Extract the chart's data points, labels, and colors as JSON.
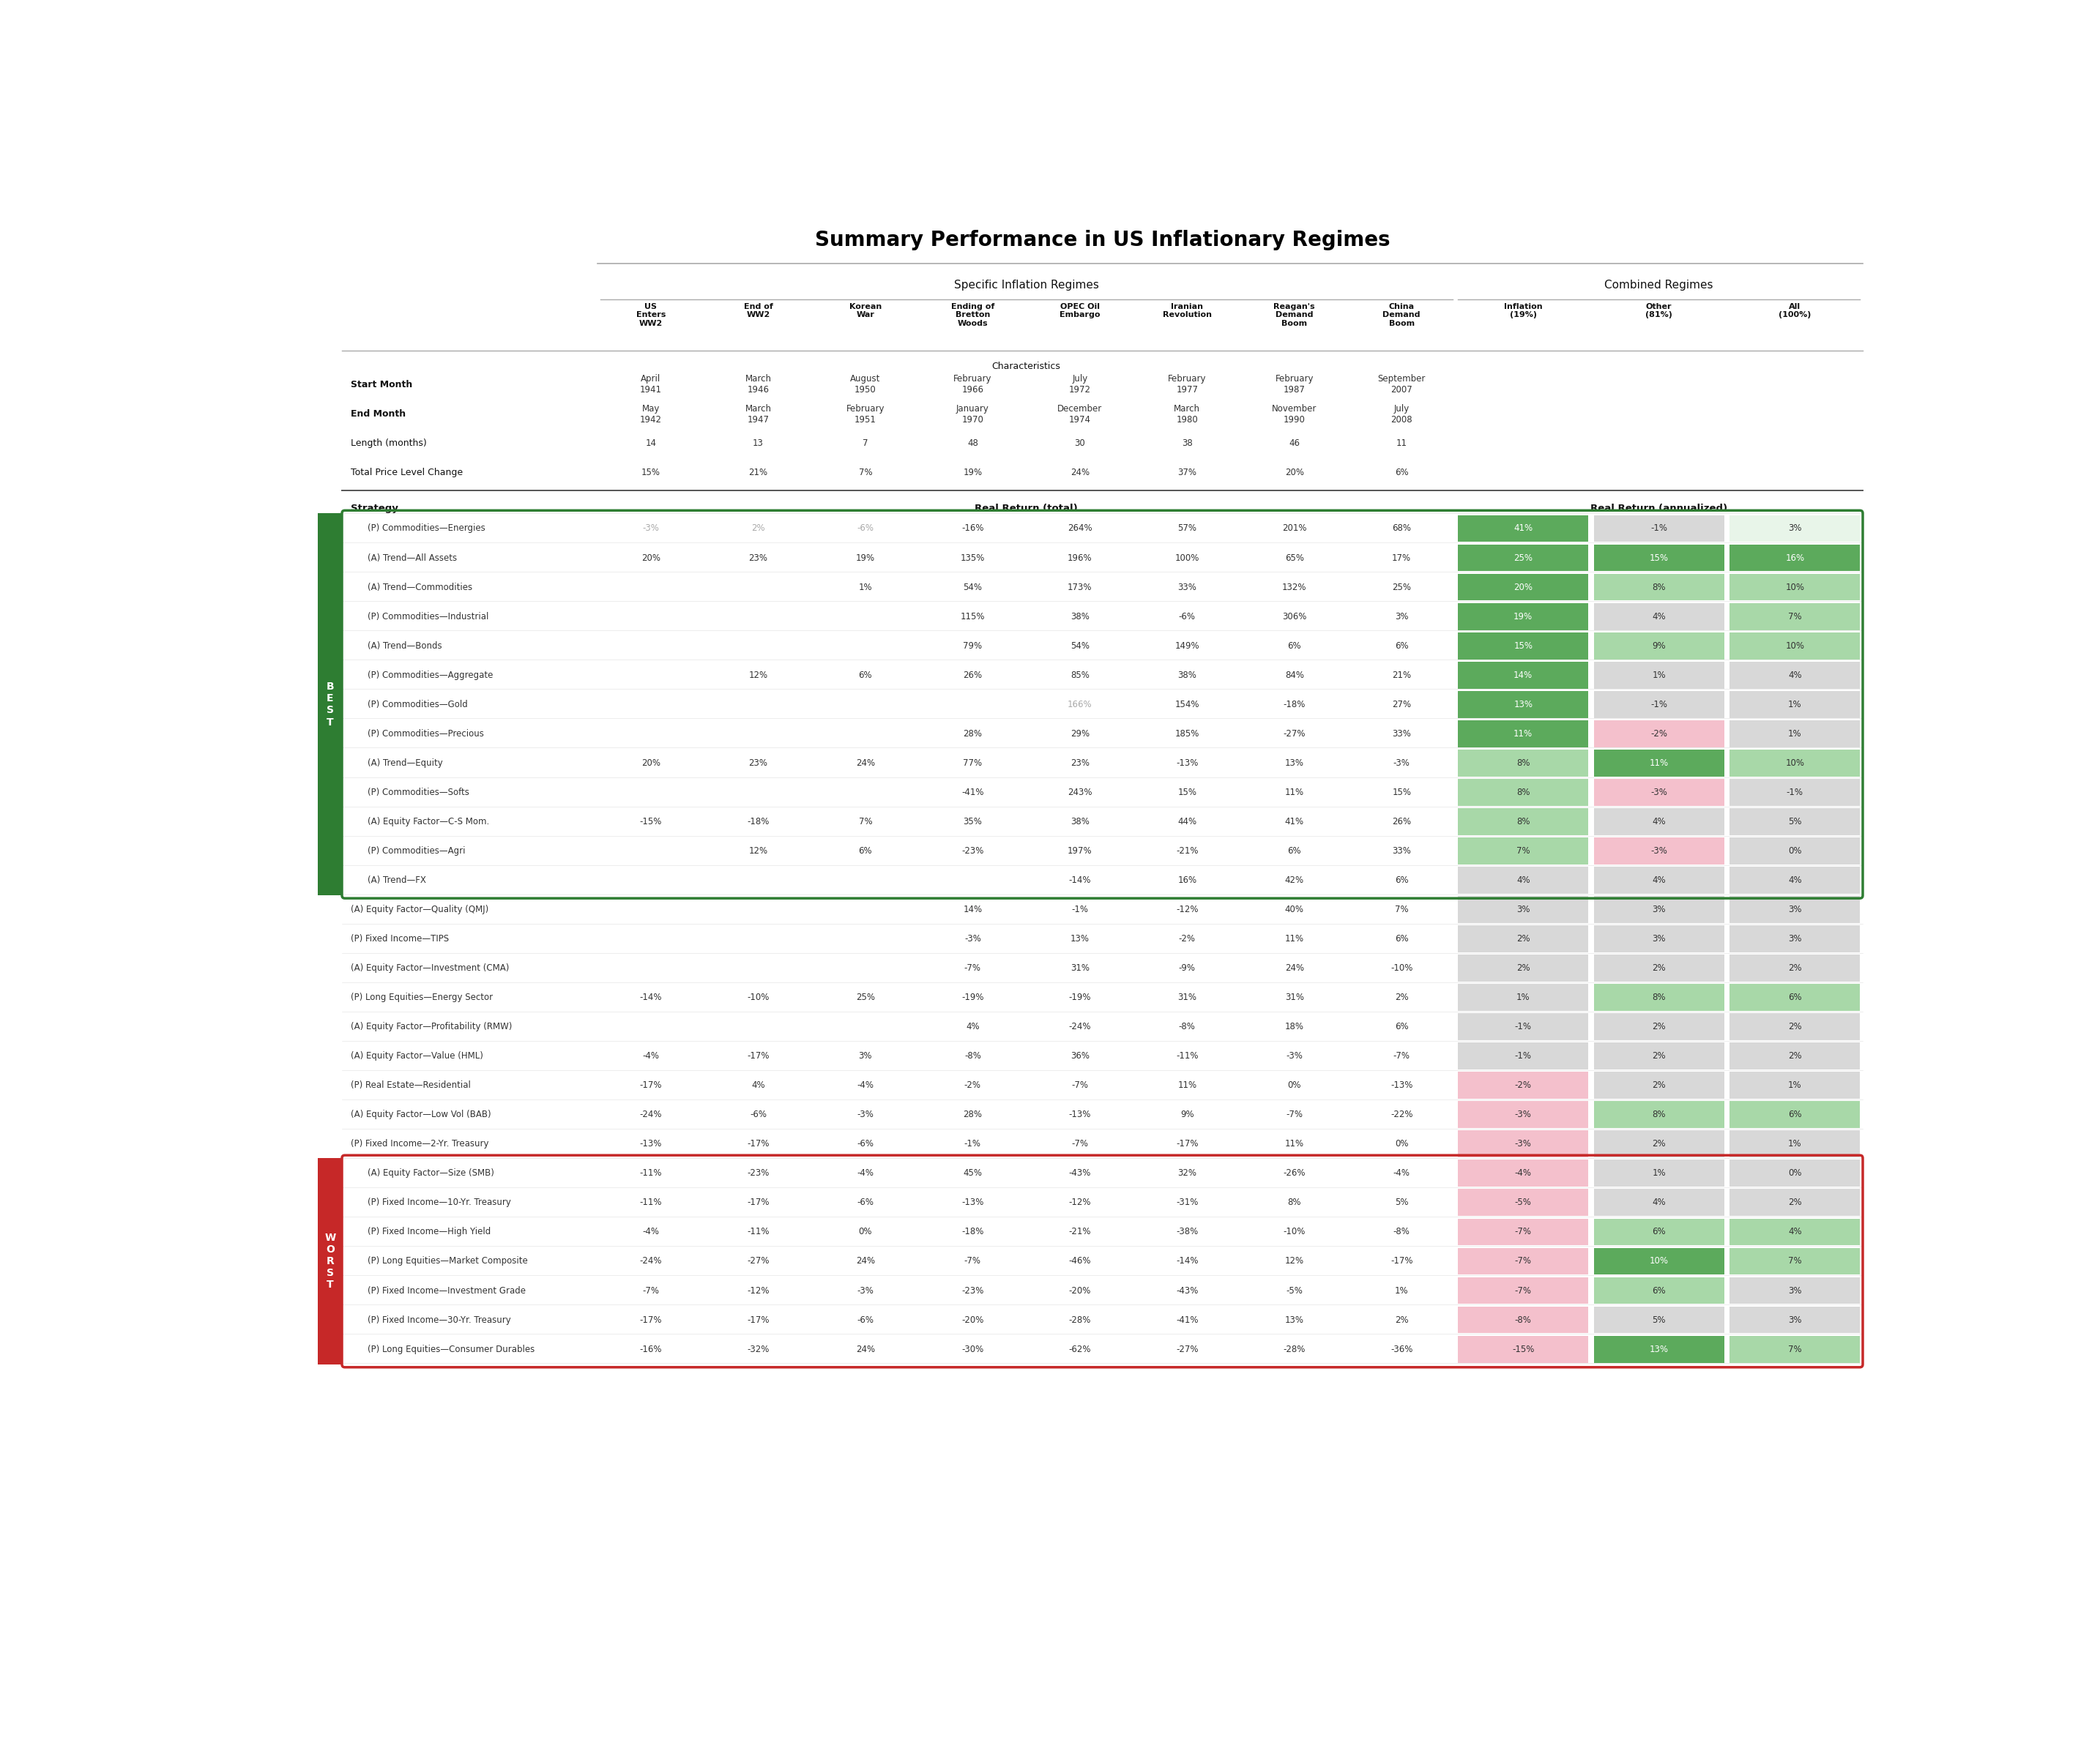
{
  "title": "Summary Performance in US Inflationary Regimes",
  "col_headers": [
    "US\nEnters\nWW2",
    "End of\nWW2",
    "Korean\nWar",
    "Ending of\nBretton\nWoods",
    "OPEC Oil\nEmbargo",
    "Iranian\nRevolution",
    "Reagan's\nDemand\nBoom",
    "China\nDemand\nBoom",
    "Inflation\n(19%)",
    "Other\n(81%)",
    "All\n(100%)"
  ],
  "char_rows": [
    {
      "label": "Start Month",
      "values": [
        "April\n1941",
        "March\n1946",
        "August\n1950",
        "February\n1966",
        "July\n1972",
        "February\n1977",
        "February\n1987",
        "September\n2007",
        "",
        "",
        ""
      ]
    },
    {
      "label": "End Month",
      "values": [
        "May\n1942",
        "March\n1947",
        "February\n1951",
        "January\n1970",
        "December\n1974",
        "March\n1980",
        "November\n1990",
        "July\n2008",
        "",
        "",
        ""
      ]
    },
    {
      "label": "Length (months)",
      "values": [
        "14",
        "13",
        "7",
        "48",
        "30",
        "38",
        "46",
        "11",
        "",
        "",
        ""
      ]
    },
    {
      "label": "Total Price Level Change",
      "values": [
        "15%",
        "21%",
        "7%",
        "19%",
        "24%",
        "37%",
        "20%",
        "6%",
        "",
        "",
        ""
      ]
    }
  ],
  "rows": [
    {
      "strategy": "(P) Commodities—Energies",
      "v": [
        "-3%",
        "2%",
        "-6%",
        "-16%",
        "264%",
        "57%",
        "201%",
        "68%",
        "41%",
        "-1%",
        "3%"
      ],
      "best": true,
      "worst": false,
      "gray": [
        0,
        1,
        2
      ],
      "ci": [
        "",
        "",
        "",
        "",
        "",
        "",
        "",
        "",
        "#5caa5c",
        "#d8d8d8",
        "#e8f5e9"
      ]
    },
    {
      "strategy": "(A) Trend—All Assets",
      "v": [
        "20%",
        "23%",
        "19%",
        "135%",
        "196%",
        "100%",
        "65%",
        "17%",
        "25%",
        "15%",
        "16%"
      ],
      "best": true,
      "worst": false,
      "gray": [],
      "ci": [
        "",
        "",
        "",
        "",
        "",
        "",
        "",
        "",
        "#5caa5c",
        "#5caa5c",
        "#5caa5c"
      ]
    },
    {
      "strategy": "(A) Trend—Commodities",
      "v": [
        "",
        "",
        "1%",
        "54%",
        "173%",
        "33%",
        "132%",
        "25%",
        "20%",
        "8%",
        "10%"
      ],
      "best": true,
      "worst": false,
      "gray": [],
      "ci": [
        "",
        "",
        "",
        "",
        "",
        "",
        "",
        "",
        "#5caa5c",
        "#a8d8a8",
        "#a8d8a8"
      ]
    },
    {
      "strategy": "(P) Commodities—Industrial",
      "v": [
        "",
        "",
        "",
        "115%",
        "38%",
        "-6%",
        "306%",
        "3%",
        "19%",
        "4%",
        "7%"
      ],
      "best": true,
      "worst": false,
      "gray": [],
      "ci": [
        "",
        "",
        "",
        "",
        "",
        "",
        "",
        "",
        "#5caa5c",
        "#d8d8d8",
        "#a8d8a8"
      ]
    },
    {
      "strategy": "(A) Trend—Bonds",
      "v": [
        "",
        "",
        "",
        "79%",
        "54%",
        "149%",
        "6%",
        "6%",
        "15%",
        "9%",
        "10%"
      ],
      "best": true,
      "worst": false,
      "gray": [],
      "ci": [
        "",
        "",
        "",
        "",
        "",
        "",
        "",
        "",
        "#5caa5c",
        "#a8d8a8",
        "#a8d8a8"
      ]
    },
    {
      "strategy": "(P) Commodities—Aggregate",
      "v": [
        "",
        "12%",
        "6%",
        "26%",
        "85%",
        "38%",
        "84%",
        "21%",
        "14%",
        "1%",
        "4%"
      ],
      "best": true,
      "worst": false,
      "gray": [],
      "ci": [
        "",
        "",
        "",
        "",
        "",
        "",
        "",
        "",
        "#5caa5c",
        "#d8d8d8",
        "#d8d8d8"
      ]
    },
    {
      "strategy": "(P) Commodities—Gold",
      "v": [
        "",
        "",
        "",
        "",
        "166%",
        "154%",
        "-18%",
        "27%",
        "13%",
        "-1%",
        "1%"
      ],
      "best": true,
      "worst": false,
      "gray": [
        4
      ],
      "ci": [
        "",
        "",
        "",
        "",
        "",
        "",
        "",
        "",
        "#5caa5c",
        "#d8d8d8",
        "#d8d8d8"
      ]
    },
    {
      "strategy": "(P) Commodities—Precious",
      "v": [
        "",
        "",
        "",
        "28%",
        "29%",
        "185%",
        "-27%",
        "33%",
        "11%",
        "-2%",
        "1%"
      ],
      "best": true,
      "worst": false,
      "gray": [],
      "ci": [
        "",
        "",
        "",
        "",
        "",
        "",
        "",
        "",
        "#5caa5c",
        "#f4c0cc",
        "#d8d8d8"
      ]
    },
    {
      "strategy": "(A) Trend—Equity",
      "v": [
        "20%",
        "23%",
        "24%",
        "77%",
        "23%",
        "-13%",
        "13%",
        "-3%",
        "8%",
        "11%",
        "10%"
      ],
      "best": true,
      "worst": false,
      "gray": [],
      "ci": [
        "",
        "",
        "",
        "",
        "",
        "",
        "",
        "",
        "#a8d8a8",
        "#5caa5c",
        "#a8d8a8"
      ]
    },
    {
      "strategy": "(P) Commodities—Softs",
      "v": [
        "",
        "",
        "",
        "-41%",
        "243%",
        "15%",
        "11%",
        "15%",
        "8%",
        "-3%",
        "-1%"
      ],
      "best": true,
      "worst": false,
      "gray": [],
      "ci": [
        "",
        "",
        "",
        "",
        "",
        "",
        "",
        "",
        "#a8d8a8",
        "#f4c0cc",
        "#d8d8d8"
      ]
    },
    {
      "strategy": "(A) Equity Factor—C-S Mom.",
      "v": [
        "-15%",
        "-18%",
        "7%",
        "35%",
        "38%",
        "44%",
        "41%",
        "26%",
        "8%",
        "4%",
        "5%"
      ],
      "best": true,
      "worst": false,
      "gray": [],
      "ci": [
        "",
        "",
        "",
        "",
        "",
        "",
        "",
        "",
        "#a8d8a8",
        "#d8d8d8",
        "#d8d8d8"
      ]
    },
    {
      "strategy": "(P) Commodities—Agri",
      "v": [
        "",
        "12%",
        "6%",
        "-23%",
        "197%",
        "-21%",
        "6%",
        "33%",
        "7%",
        "-3%",
        "0%"
      ],
      "best": true,
      "worst": false,
      "gray": [],
      "ci": [
        "",
        "",
        "",
        "",
        "",
        "",
        "",
        "",
        "#a8d8a8",
        "#f4c0cc",
        "#d8d8d8"
      ]
    },
    {
      "strategy": "(A) Trend—FX",
      "v": [
        "",
        "",
        "",
        "",
        "-14%",
        "16%",
        "42%",
        "6%",
        "4%",
        "4%",
        "4%"
      ],
      "best": true,
      "worst": false,
      "gray": [],
      "ci": [
        "",
        "",
        "",
        "",
        "",
        "",
        "",
        "",
        "#d8d8d8",
        "#d8d8d8",
        "#d8d8d8"
      ]
    },
    {
      "strategy": "(A) Equity Factor—Quality (QMJ)",
      "v": [
        "",
        "",
        "",
        "14%",
        "-1%",
        "-12%",
        "40%",
        "7%",
        "3%",
        "3%",
        "3%"
      ],
      "best": false,
      "worst": false,
      "gray": [],
      "ci": [
        "",
        "",
        "",
        "",
        "",
        "",
        "",
        "",
        "#d8d8d8",
        "#d8d8d8",
        "#d8d8d8"
      ]
    },
    {
      "strategy": "(P) Fixed Income—TIPS",
      "v": [
        "",
        "",
        "",
        "-3%",
        "13%",
        "-2%",
        "11%",
        "6%",
        "2%",
        "3%",
        "3%"
      ],
      "best": false,
      "worst": false,
      "gray": [],
      "ci": [
        "",
        "",
        "",
        "",
        "",
        "",
        "",
        "",
        "#d8d8d8",
        "#d8d8d8",
        "#d8d8d8"
      ]
    },
    {
      "strategy": "(A) Equity Factor—Investment (CMA)",
      "v": [
        "",
        "",
        "",
        "-7%",
        "31%",
        "-9%",
        "24%",
        "-10%",
        "2%",
        "2%",
        "2%"
      ],
      "best": false,
      "worst": false,
      "gray": [],
      "ci": [
        "",
        "",
        "",
        "",
        "",
        "",
        "",
        "",
        "#d8d8d8",
        "#d8d8d8",
        "#d8d8d8"
      ]
    },
    {
      "strategy": "(P) Long Equities—Energy Sector",
      "v": [
        "-14%",
        "-10%",
        "25%",
        "-19%",
        "-19%",
        "31%",
        "31%",
        "2%",
        "1%",
        "8%",
        "6%"
      ],
      "best": false,
      "worst": false,
      "gray": [],
      "ci": [
        "",
        "",
        "",
        "",
        "",
        "",
        "",
        "",
        "#d8d8d8",
        "#a8d8a8",
        "#a8d8a8"
      ]
    },
    {
      "strategy": "(A) Equity Factor—Profitability (RMW)",
      "v": [
        "",
        "",
        "",
        "4%",
        "-24%",
        "-8%",
        "18%",
        "6%",
        "-1%",
        "2%",
        "2%"
      ],
      "best": false,
      "worst": false,
      "gray": [],
      "ci": [
        "",
        "",
        "",
        "",
        "",
        "",
        "",
        "",
        "#d8d8d8",
        "#d8d8d8",
        "#d8d8d8"
      ]
    },
    {
      "strategy": "(A) Equity Factor—Value (HML)",
      "v": [
        "-4%",
        "-17%",
        "3%",
        "-8%",
        "36%",
        "-11%",
        "-3%",
        "-7%",
        "-1%",
        "2%",
        "2%"
      ],
      "best": false,
      "worst": false,
      "gray": [],
      "ci": [
        "",
        "",
        "",
        "",
        "",
        "",
        "",
        "",
        "#d8d8d8",
        "#d8d8d8",
        "#d8d8d8"
      ]
    },
    {
      "strategy": "(P) Real Estate—Residential",
      "v": [
        "-17%",
        "4%",
        "-4%",
        "-2%",
        "-7%",
        "11%",
        "0%",
        "-13%",
        "-2%",
        "2%",
        "1%"
      ],
      "best": false,
      "worst": false,
      "gray": [],
      "ci": [
        "",
        "",
        "",
        "",
        "",
        "",
        "",
        "",
        "#f4c0cc",
        "#d8d8d8",
        "#d8d8d8"
      ]
    },
    {
      "strategy": "(A) Equity Factor—Low Vol (BAB)",
      "v": [
        "-24%",
        "-6%",
        "-3%",
        "28%",
        "-13%",
        "9%",
        "-7%",
        "-22%",
        "-3%",
        "8%",
        "6%"
      ],
      "best": false,
      "worst": false,
      "gray": [],
      "ci": [
        "",
        "",
        "",
        "",
        "",
        "",
        "",
        "",
        "#f4c0cc",
        "#a8d8a8",
        "#a8d8a8"
      ]
    },
    {
      "strategy": "(P) Fixed Income—2-Yr. Treasury",
      "v": [
        "-13%",
        "-17%",
        "-6%",
        "-1%",
        "-7%",
        "-17%",
        "11%",
        "0%",
        "-3%",
        "2%",
        "1%"
      ],
      "best": false,
      "worst": false,
      "gray": [],
      "ci": [
        "",
        "",
        "",
        "",
        "",
        "",
        "",
        "",
        "#f4c0cc",
        "#d8d8d8",
        "#d8d8d8"
      ]
    },
    {
      "strategy": "(A) Equity Factor—Size (SMB)",
      "v": [
        "-11%",
        "-23%",
        "-4%",
        "45%",
        "-43%",
        "32%",
        "-26%",
        "-4%",
        "-4%",
        "1%",
        "0%"
      ],
      "best": false,
      "worst": true,
      "gray": [],
      "ci": [
        "",
        "",
        "",
        "",
        "",
        "",
        "",
        "",
        "#f4c0cc",
        "#d8d8d8",
        "#d8d8d8"
      ]
    },
    {
      "strategy": "(P) Fixed Income—10-Yr. Treasury",
      "v": [
        "-11%",
        "-17%",
        "-6%",
        "-13%",
        "-12%",
        "-31%",
        "8%",
        "5%",
        "-5%",
        "4%",
        "2%"
      ],
      "best": false,
      "worst": true,
      "gray": [],
      "ci": [
        "",
        "",
        "",
        "",
        "",
        "",
        "",
        "",
        "#f4c0cc",
        "#d8d8d8",
        "#d8d8d8"
      ]
    },
    {
      "strategy": "(P) Fixed Income—High Yield",
      "v": [
        "-4%",
        "-11%",
        "0%",
        "-18%",
        "-21%",
        "-38%",
        "-10%",
        "-8%",
        "-7%",
        "6%",
        "4%"
      ],
      "best": false,
      "worst": true,
      "gray": [],
      "ci": [
        "",
        "",
        "",
        "",
        "",
        "",
        "",
        "",
        "#f4c0cc",
        "#a8d8a8",
        "#a8d8a8"
      ]
    },
    {
      "strategy": "(P) Long Equities—Market Composite",
      "v": [
        "-24%",
        "-27%",
        "24%",
        "-7%",
        "-46%",
        "-14%",
        "12%",
        "-17%",
        "-7%",
        "10%",
        "7%"
      ],
      "best": false,
      "worst": true,
      "gray": [],
      "ci": [
        "",
        "",
        "",
        "",
        "",
        "",
        "",
        "",
        "#f4c0cc",
        "#5caa5c",
        "#a8d8a8"
      ]
    },
    {
      "strategy": "(P) Fixed Income—Investment Grade",
      "v": [
        "-7%",
        "-12%",
        "-3%",
        "-23%",
        "-20%",
        "-43%",
        "-5%",
        "1%",
        "-7%",
        "6%",
        "3%"
      ],
      "best": false,
      "worst": true,
      "gray": [],
      "ci": [
        "",
        "",
        "",
        "",
        "",
        "",
        "",
        "",
        "#f4c0cc",
        "#a8d8a8",
        "#d8d8d8"
      ]
    },
    {
      "strategy": "(P) Fixed Income—30-Yr. Treasury",
      "v": [
        "-17%",
        "-17%",
        "-6%",
        "-20%",
        "-28%",
        "-41%",
        "13%",
        "2%",
        "-8%",
        "5%",
        "3%"
      ],
      "best": false,
      "worst": true,
      "gray": [],
      "ci": [
        "",
        "",
        "",
        "",
        "",
        "",
        "",
        "",
        "#f4c0cc",
        "#d8d8d8",
        "#d8d8d8"
      ]
    },
    {
      "strategy": "(P) Long Equities—Consumer Durables",
      "v": [
        "-16%",
        "-32%",
        "24%",
        "-30%",
        "-62%",
        "-27%",
        "-28%",
        "-36%",
        "-15%",
        "13%",
        "7%"
      ],
      "best": false,
      "worst": true,
      "gray": [],
      "ci": [
        "",
        "",
        "",
        "",
        "",
        "",
        "",
        "",
        "#f4c0cc",
        "#5caa5c",
        "#a8d8a8"
      ]
    }
  ],
  "best_color": "#2e7d32",
  "worst_color": "#c62828",
  "sep_color": "#aaaaaa",
  "dark_sep_color": "#555555",
  "text_color": "#333333",
  "gray_text_color": "#aaaaaa",
  "header_bold_color": "#111111"
}
